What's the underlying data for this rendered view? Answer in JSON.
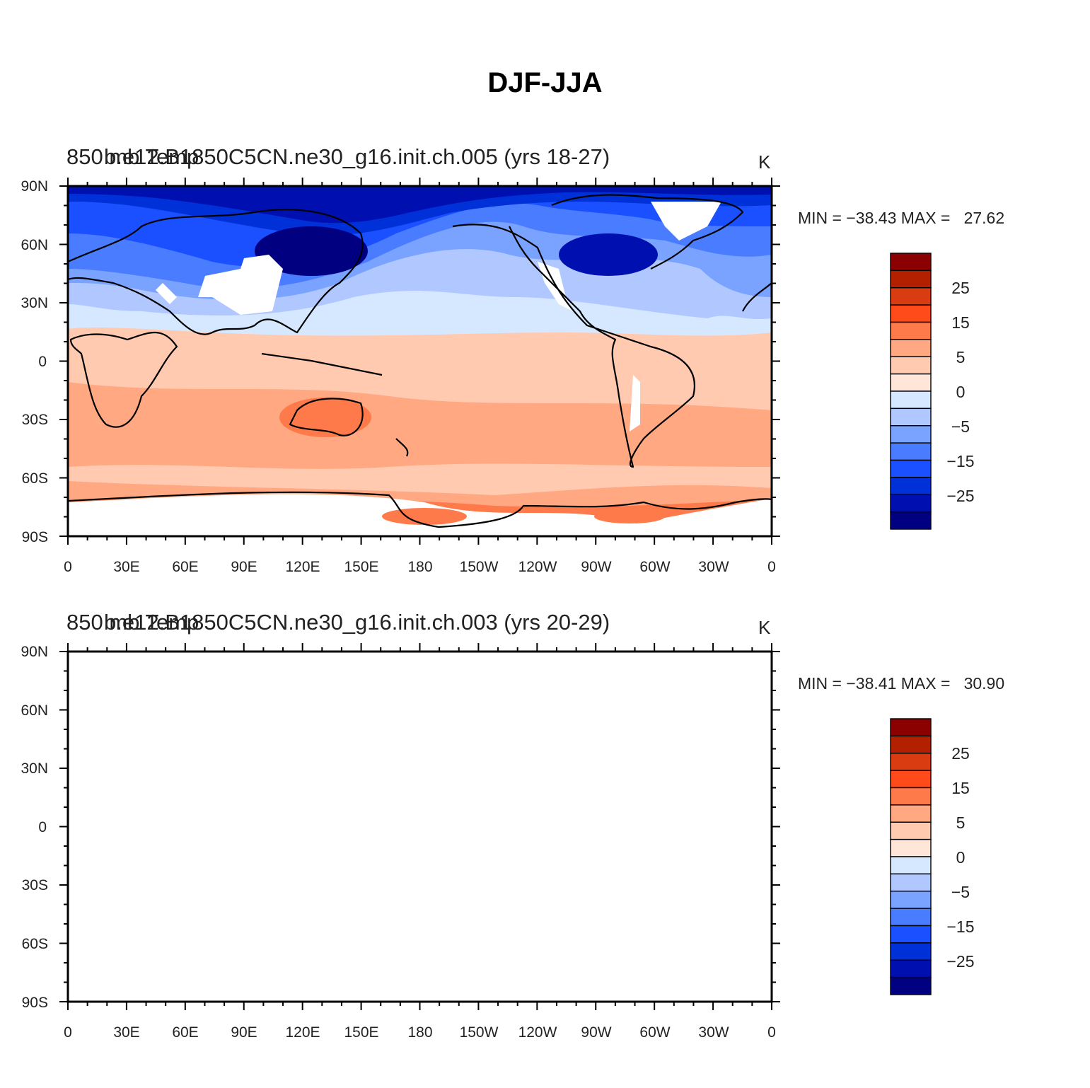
{
  "figure_title": "DJF-JJA",
  "colors": {
    "ocean_band_palette": [
      "#000080",
      "#0010b0",
      "#0030d8",
      "#1a50ff",
      "#4a7cff",
      "#7aa2ff",
      "#b0c8ff",
      "#d6e8ff",
      "#ffe6d8",
      "#ffcab0",
      "#ffa882",
      "#ff7a4a",
      "#ff4a1a",
      "#c82800",
      "#8b0000"
    ],
    "missing_data": "#ffffff",
    "coastline": "#000000"
  },
  "panels": [
    {
      "left_title": "850 mb Temp",
      "center_title": "b.e12.B1850C5CN.ne30_g16.init.ch.005 (yrs 18-27)",
      "units": "K",
      "min_max_label": "MIN = −38.43 MAX =   27.62",
      "min": -38.43,
      "max": 27.62
    },
    {
      "left_title": "850 mb Temp",
      "center_title": "b.e12.B1850C5CN.ne30_g16.init.ch.003 (yrs 20-29)",
      "units": "K",
      "min_max_label": "MIN = −38.41 MAX =   30.90",
      "min": -38.41,
      "max": 30.9
    }
  ],
  "lat_labels": [
    "90N",
    "60N",
    "30N",
    "0",
    "30S",
    "60S",
    "90S"
  ],
  "lon_labels": [
    "0",
    "30E",
    "60E",
    "90E",
    "120E",
    "150E",
    "180",
    "150W",
    "120W",
    "90W",
    "60W",
    "30W",
    "0"
  ],
  "colorbar_labels": [
    "25",
    "15",
    "5",
    "0",
    "−5",
    "−15",
    "−25"
  ],
  "colorbar_colors": [
    "#8b0000",
    "#b22000",
    "#d83c10",
    "#ff4a1a",
    "#ff7a4a",
    "#ffa882",
    "#ffcab0",
    "#ffe6d8",
    "#d6e8ff",
    "#b0c8ff",
    "#7aa2ff",
    "#4a7cff",
    "#1a50ff",
    "#0030d8",
    "#0010b0",
    "#000080"
  ]
}
